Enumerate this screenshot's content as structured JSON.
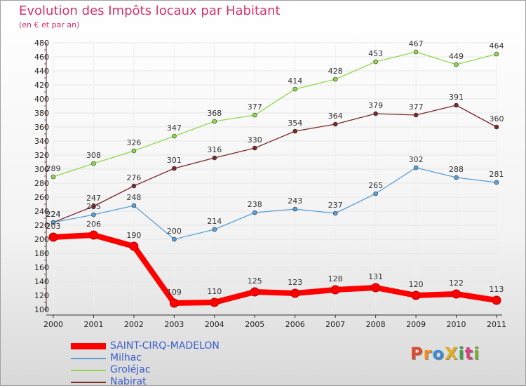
{
  "title": "Evolution des Impôts locaux par Habitant",
  "subtitle": "(en € et par an)",
  "logo": {
    "text": "ProXiti",
    "letters": [
      "P",
      "r",
      "o",
      "X",
      "i",
      "t",
      "i"
    ],
    "colors": [
      "#e04a2a",
      "#f08a1a",
      "#3a8ad8",
      "#e0b020",
      "#3aa04a",
      "#d84080",
      "#7ab030"
    ]
  },
  "colors": {
    "title": "#d5306b",
    "legend_text": "#3a5fcd"
  },
  "chart_data": {
    "type": "line",
    "x": [
      "2000",
      "2001",
      "2002",
      "2003",
      "2004",
      "2005",
      "2006",
      "2007",
      "2008",
      "2009",
      "2010",
      "2011"
    ],
    "ylim": [
      100,
      480
    ],
    "yticks": [
      100,
      120,
      140,
      160,
      180,
      200,
      220,
      240,
      260,
      280,
      300,
      320,
      340,
      360,
      380,
      400,
      420,
      440,
      460,
      480
    ],
    "grid": true,
    "legend_position": "bottom-left",
    "series": [
      {
        "name": "SAINT-CIRQ-MADELON",
        "color": "#ff0000",
        "values": [
          203,
          206,
          190,
          109,
          110,
          125,
          123,
          128,
          131,
          120,
          122,
          113
        ]
      },
      {
        "name": "Milhac",
        "color": "#5aa0d8",
        "values": [
          224,
          235,
          248,
          200,
          214,
          238,
          243,
          237,
          265,
          302,
          288,
          281
        ]
      },
      {
        "name": "Groléjac",
        "color": "#8fd84a",
        "values": [
          289,
          308,
          326,
          347,
          368,
          377,
          414,
          428,
          453,
          467,
          449,
          464
        ]
      },
      {
        "name": "Nabirat",
        "color": "#7a2a2a",
        "values": [
          224,
          247,
          276,
          301,
          316,
          330,
          354,
          364,
          379,
          377,
          391,
          360
        ]
      }
    ]
  }
}
